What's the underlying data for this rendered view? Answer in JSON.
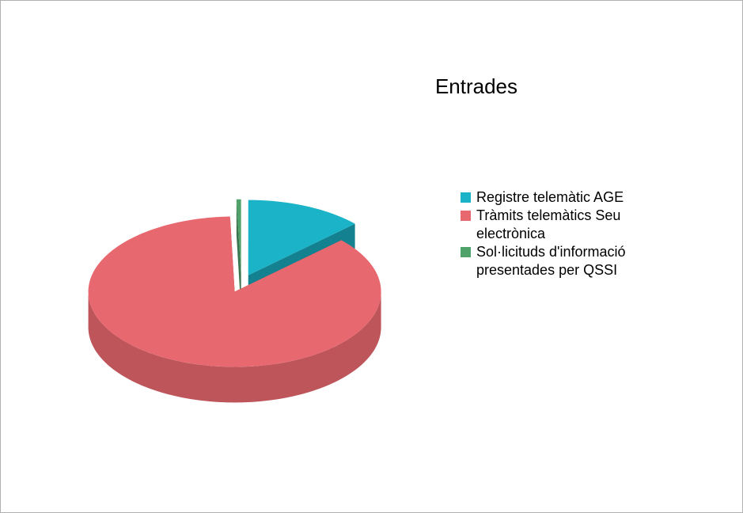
{
  "chart_data": {
    "type": "pie",
    "title": "Entrades",
    "categories": [
      "Registre telemàtic AGE",
      "Tràmits telemàtics Seu electrònica",
      "Sol·licituds d'informació presentades per QSSI"
    ],
    "values": [
      13,
      86.5,
      0.5
    ],
    "colors": [
      "#1ab3c8",
      "#e8686f",
      "#4fa36a"
    ],
    "legend": "right"
  }
}
